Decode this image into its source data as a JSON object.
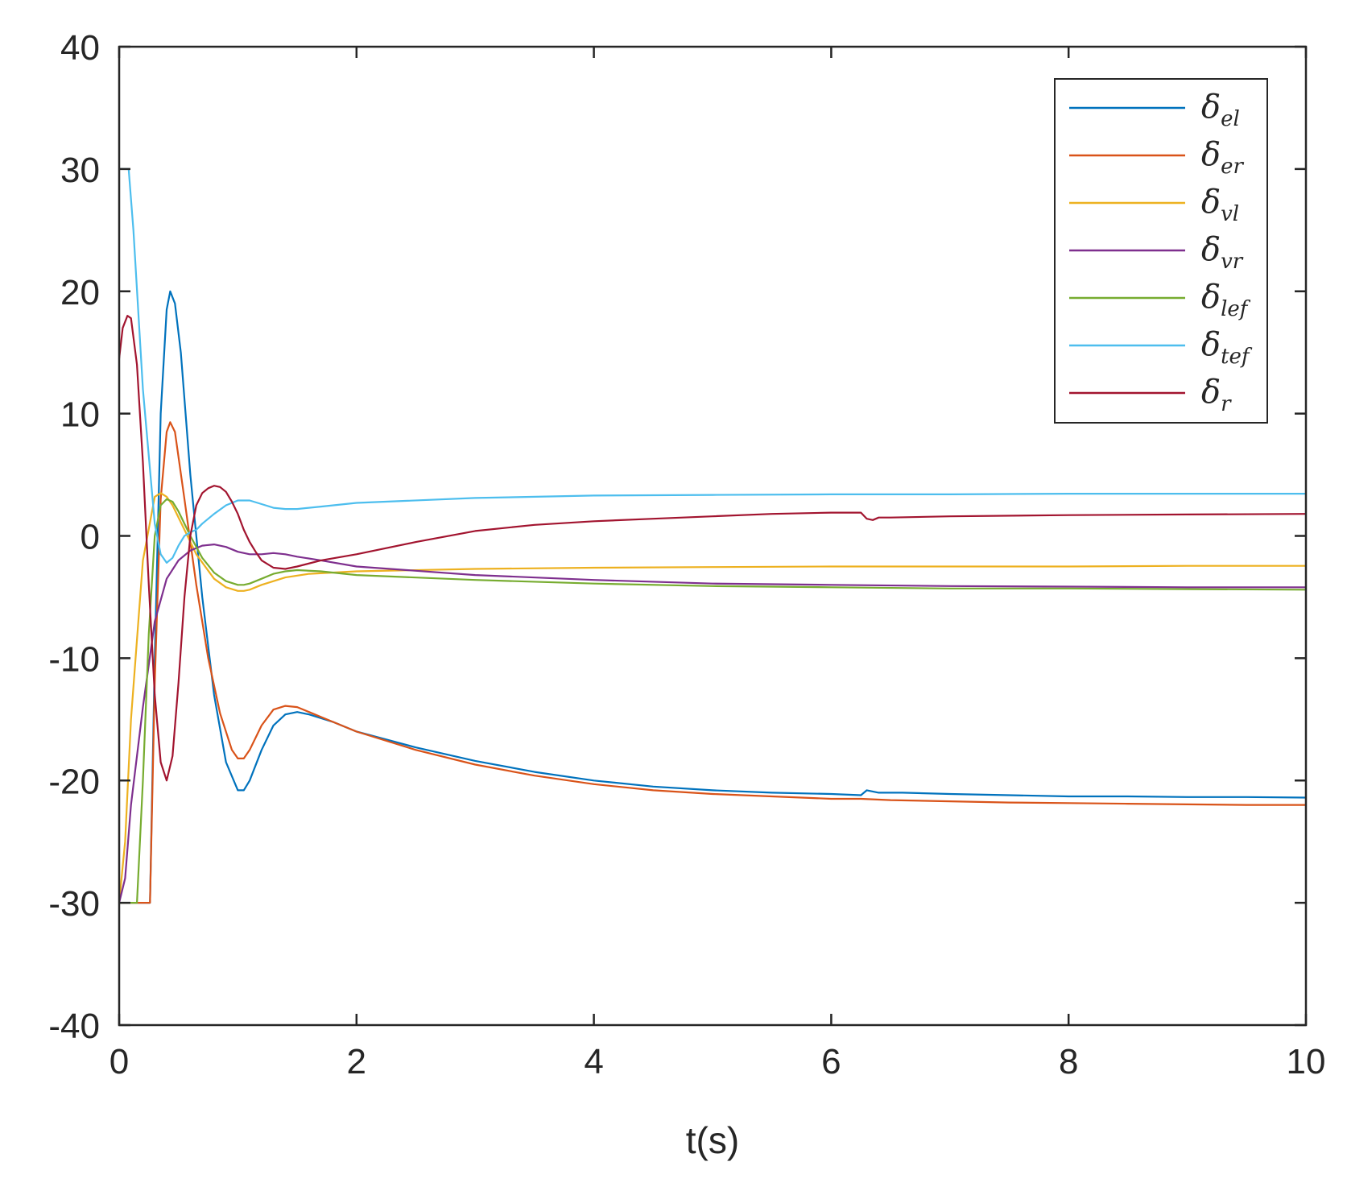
{
  "chart_data": {
    "type": "line",
    "title": "",
    "xlabel": "t(s)",
    "ylabel": "",
    "xlim": [
      0,
      10
    ],
    "ylim": [
      -40,
      40
    ],
    "xticks": [
      "0",
      "2",
      "4",
      "6",
      "8",
      "10"
    ],
    "yticks": [
      "-40",
      "-30",
      "-20",
      "-10",
      "0",
      "10",
      "20",
      "30",
      "40"
    ],
    "grid": false,
    "legend_position": "top-right",
    "series": [
      {
        "name": "δ_el",
        "symbol": "δ",
        "subscript": "el",
        "color": "#0072BD",
        "x": [
          0,
          0.25,
          0.26,
          0.3,
          0.35,
          0.4,
          0.43,
          0.47,
          0.52,
          0.6,
          0.7,
          0.8,
          0.9,
          1.0,
          1.05,
          1.1,
          1.2,
          1.3,
          1.4,
          1.5,
          1.6,
          1.8,
          2.0,
          2.5,
          3.0,
          3.5,
          4.0,
          4.5,
          5.0,
          5.5,
          6.0,
          6.25,
          6.3,
          6.35,
          6.4,
          6.6,
          7.0,
          7.5,
          8.0,
          8.5,
          9.0,
          9.5,
          10.0
        ],
        "y": [
          -30,
          -30,
          -30,
          -10,
          10,
          18.5,
          20,
          19,
          15,
          5,
          -5,
          -13,
          -18.5,
          -20.8,
          -20.8,
          -20,
          -17.5,
          -15.5,
          -14.6,
          -14.4,
          -14.6,
          -15.2,
          -16,
          -17.3,
          -18.4,
          -19.3,
          -20,
          -20.5,
          -20.8,
          -21,
          -21.1,
          -21.2,
          -20.8,
          -20.9,
          -21,
          -21,
          -21.1,
          -21.2,
          -21.3,
          -21.3,
          -21.35,
          -21.35,
          -21.4
        ]
      },
      {
        "name": "δ_er",
        "symbol": "δ",
        "subscript": "er",
        "color": "#D95319",
        "x": [
          0,
          0.25,
          0.26,
          0.3,
          0.35,
          0.4,
          0.43,
          0.47,
          0.55,
          0.65,
          0.75,
          0.85,
          0.95,
          1.0,
          1.05,
          1.1,
          1.2,
          1.3,
          1.4,
          1.5,
          1.6,
          1.8,
          2.0,
          2.5,
          3.0,
          3.5,
          4.0,
          4.5,
          5.0,
          5.5,
          6.0,
          6.25,
          6.5,
          7.0,
          7.5,
          8.0,
          8.5,
          9.0,
          9.5,
          10.0
        ],
        "y": [
          -30,
          -30,
          -30,
          -12,
          3,
          8.5,
          9.3,
          8.5,
          3,
          -4,
          -10,
          -14.5,
          -17.5,
          -18.2,
          -18.2,
          -17.5,
          -15.5,
          -14.2,
          -13.9,
          -14,
          -14.4,
          -15.2,
          -16,
          -17.5,
          -18.7,
          -19.6,
          -20.3,
          -20.8,
          -21.1,
          -21.3,
          -21.5,
          -21.5,
          -21.6,
          -21.7,
          -21.8,
          -21.85,
          -21.9,
          -21.95,
          -22,
          -22
        ]
      },
      {
        "name": "δ_vl",
        "symbol": "δ",
        "subscript": "vl",
        "color": "#EDB120",
        "x": [
          0,
          0.05,
          0.1,
          0.2,
          0.3,
          0.35,
          0.4,
          0.45,
          0.55,
          0.65,
          0.8,
          0.9,
          1.0,
          1.05,
          1.1,
          1.2,
          1.4,
          1.6,
          2.0,
          3.0,
          4.0,
          5.0,
          6.0,
          7.0,
          8.0,
          9.0,
          10.0
        ],
        "y": [
          -30,
          -25,
          -15,
          -2,
          3.2,
          3.5,
          3.2,
          2.5,
          0.5,
          -1.5,
          -3.5,
          -4.2,
          -4.5,
          -4.5,
          -4.4,
          -4,
          -3.4,
          -3.1,
          -2.9,
          -2.7,
          -2.6,
          -2.55,
          -2.5,
          -2.5,
          -2.5,
          -2.45,
          -2.45
        ]
      },
      {
        "name": "δ_vr",
        "symbol": "δ",
        "subscript": "vr",
        "color": "#7E2F8E",
        "x": [
          0,
          0.05,
          0.1,
          0.2,
          0.3,
          0.4,
          0.5,
          0.6,
          0.7,
          0.8,
          0.9,
          1.0,
          1.1,
          1.2,
          1.3,
          1.4,
          1.5,
          1.7,
          2.0,
          3.0,
          4.0,
          5.0,
          6.0,
          7.0,
          8.0,
          9.0,
          10.0
        ],
        "y": [
          -30,
          -28,
          -22,
          -14,
          -7,
          -3.5,
          -2,
          -1.2,
          -0.8,
          -0.7,
          -0.9,
          -1.3,
          -1.5,
          -1.5,
          -1.4,
          -1.5,
          -1.7,
          -2,
          -2.5,
          -3.2,
          -3.6,
          -3.9,
          -4,
          -4.1,
          -4.15,
          -4.2,
          -4.2
        ]
      },
      {
        "name": "δ_lef",
        "symbol": "δ",
        "subscript": "lef",
        "color": "#77AC30",
        "x": [
          0,
          0.15,
          0.2,
          0.25,
          0.3,
          0.35,
          0.4,
          0.45,
          0.5,
          0.6,
          0.7,
          0.8,
          0.9,
          1.0,
          1.05,
          1.1,
          1.2,
          1.3,
          1.4,
          1.5,
          1.7,
          2.0,
          3.0,
          4.0,
          5.0,
          6.0,
          7.0,
          8.0,
          9.0,
          10.0
        ],
        "y": [
          -30,
          -30,
          -20,
          -8,
          0,
          2.5,
          3,
          2.8,
          2,
          0,
          -1.8,
          -3,
          -3.7,
          -4,
          -4,
          -3.9,
          -3.5,
          -3.1,
          -2.9,
          -2.8,
          -2.9,
          -3.2,
          -3.6,
          -3.9,
          -4.1,
          -4.2,
          -4.3,
          -4.3,
          -4.35,
          -4.4
        ]
      },
      {
        "name": "δ_tef",
        "symbol": "δ",
        "subscript": "tef",
        "color": "#4DBEEE",
        "x": [
          0,
          0.08,
          0.12,
          0.2,
          0.3,
          0.35,
          0.4,
          0.45,
          0.5,
          0.55,
          0.6,
          0.65,
          0.7,
          0.8,
          0.9,
          1.0,
          1.1,
          1.2,
          1.3,
          1.4,
          1.5,
          1.7,
          2.0,
          3.0,
          4.0,
          5.0,
          6.0,
          7.0,
          8.0,
          9.0,
          10.0
        ],
        "y": [
          30,
          30,
          25,
          12,
          1,
          -1.5,
          -2.2,
          -1.8,
          -0.8,
          0,
          0.3,
          0.5,
          1,
          1.8,
          2.5,
          2.9,
          2.9,
          2.6,
          2.3,
          2.2,
          2.2,
          2.4,
          2.7,
          3.1,
          3.3,
          3.35,
          3.4,
          3.4,
          3.45,
          3.45,
          3.45
        ]
      },
      {
        "name": "δ_r",
        "symbol": "δ",
        "subscript": "r",
        "color": "#A2142F",
        "x": [
          0,
          0.03,
          0.07,
          0.1,
          0.15,
          0.2,
          0.25,
          0.3,
          0.35,
          0.4,
          0.45,
          0.5,
          0.55,
          0.6,
          0.65,
          0.7,
          0.75,
          0.8,
          0.85,
          0.9,
          0.95,
          1.0,
          1.05,
          1.1,
          1.15,
          1.2,
          1.3,
          1.4,
          1.5,
          1.7,
          2.0,
          2.5,
          3.0,
          3.5,
          4.0,
          4.5,
          5.0,
          5.5,
          6.0,
          6.25,
          6.3,
          6.35,
          6.4,
          6.45,
          6.5,
          7.0,
          8.0,
          9.0,
          10.0
        ],
        "y": [
          14.5,
          17,
          18,
          17.8,
          14,
          6,
          -4,
          -13,
          -18.5,
          -20,
          -18,
          -12,
          -5,
          0,
          2.5,
          3.5,
          3.9,
          4.1,
          4,
          3.6,
          2.8,
          1.8,
          0.5,
          -0.5,
          -1.3,
          -2,
          -2.6,
          -2.7,
          -2.5,
          -2,
          -1.5,
          -0.5,
          0.4,
          0.9,
          1.2,
          1.4,
          1.6,
          1.8,
          1.9,
          1.9,
          1.4,
          1.3,
          1.5,
          1.5,
          1.5,
          1.6,
          1.7,
          1.75,
          1.8
        ]
      }
    ]
  }
}
